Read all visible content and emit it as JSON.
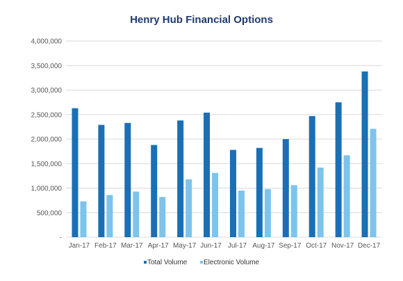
{
  "chart_data": {
    "type": "bar",
    "title": "Henry Hub Financial Options",
    "xlabel": "",
    "ylabel": "",
    "categories": [
      "Jan-17",
      "Feb-17",
      "Mar-17",
      "Apr-17",
      "May-17",
      "Jun-17",
      "Jul-17",
      "Aug-17",
      "Sep-17",
      "Oct-17",
      "Nov-17",
      "Dec-17"
    ],
    "series": [
      {
        "name": "Total Volume",
        "color": "#1a6fb5",
        "values": [
          2630000,
          2290000,
          2330000,
          1880000,
          2380000,
          2540000,
          1780000,
          1820000,
          2000000,
          2470000,
          2750000,
          3380000
        ]
      },
      {
        "name": "Electronic Volume",
        "color": "#7cc4ec",
        "values": [
          730000,
          860000,
          930000,
          820000,
          1180000,
          1310000,
          950000,
          980000,
          1060000,
          1420000,
          1670000,
          2210000
        ]
      }
    ],
    "ylim": [
      0,
      4000000
    ],
    "yticks": [
      0,
      500000,
      1000000,
      1500000,
      2000000,
      2500000,
      3000000,
      3500000,
      4000000
    ],
    "ytick_labels": [
      "-",
      "500,000",
      "1,000,000",
      "1,500,000",
      "2,000,000",
      "2,500,000",
      "3,000,000",
      "3,500,000",
      "4,000,000"
    ],
    "grid": true,
    "legend_position": "bottom"
  }
}
